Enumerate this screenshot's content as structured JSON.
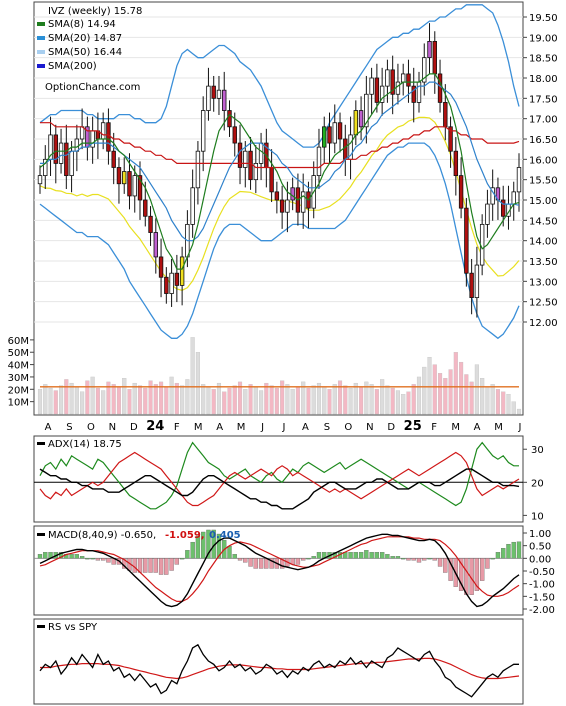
{
  "chart_data": [
    {
      "type": "candlestick",
      "panel": "price",
      "title": "IVZ (weekly) 15.78",
      "watermark": "OptionChance.com",
      "ylim": [
        11.5,
        19.9
      ],
      "y_ticks": [
        "19.50",
        "19.00",
        "18.50",
        "18.00",
        "17.50",
        "17.00",
        "16.50",
        "16.00",
        "15.50",
        "15.00",
        "14.50",
        "14.00",
        "13.50",
        "13.00",
        "12.50",
        "12.00"
      ],
      "x_labels": [
        "A",
        "S",
        "O",
        "N",
        "D",
        "24",
        "F",
        "M",
        "A",
        "M",
        "J",
        "J",
        "A",
        "S",
        "O",
        "N",
        "D",
        "25",
        "F",
        "M",
        "A",
        "M",
        "J"
      ],
      "legend": [
        {
          "label": "SMA(8) 14.94",
          "color": "#1e7d1e"
        },
        {
          "label": "SMA(20) 14.87",
          "color": "#2a8fd6"
        },
        {
          "label": "SMA(50) 16.44",
          "color": "#a8cff0"
        },
        {
          "label": "SMA(200)",
          "color": "#1a1ad0"
        }
      ],
      "close_path": [
        15.6,
        16.0,
        16.6,
        15.9,
        16.4,
        15.6,
        16.2,
        16.5,
        16.8,
        16.3,
        16.7,
        16.5,
        16.9,
        16.2,
        15.8,
        15.4,
        15.7,
        15.1,
        15.6,
        15.0,
        14.6,
        14.2,
        13.6,
        13.1,
        12.7,
        13.2,
        12.9,
        13.6,
        14.4,
        15.3,
        16.2,
        17.2,
        17.8,
        17.5,
        17.7,
        17.2,
        16.8,
        16.4,
        15.8,
        16.2,
        15.5,
        15.9,
        16.4,
        15.8,
        15.2,
        15.0,
        14.7,
        15.0,
        15.3,
        14.7,
        15.2,
        14.8,
        15.6,
        16.3,
        16.8,
        16.4,
        16.9,
        16.5,
        16.0,
        16.6,
        17.2,
        16.8,
        17.6,
        18.0,
        17.4,
        17.8,
        18.2,
        17.6,
        17.9,
        18.1,
        17.8,
        17.4,
        17.9,
        18.5,
        18.9,
        18.1,
        17.4,
        16.8,
        16.2,
        15.6,
        14.8,
        13.2,
        12.6,
        13.4,
        14.4,
        14.9,
        15.3,
        15.0,
        14.6,
        14.9,
        15.2,
        15.8
      ],
      "sma8": [
        15.8,
        15.9,
        16.1,
        16.2,
        16.2,
        16.2,
        16.3,
        16.3,
        16.4,
        16.4,
        16.4,
        16.5,
        16.5,
        16.5,
        16.4,
        16.2,
        16.1,
        15.9,
        15.7,
        15.5,
        15.3,
        15.0,
        14.6,
        14.2,
        13.8,
        13.6,
        13.3,
        13.3,
        13.6,
        13.9,
        14.4,
        15.0,
        15.6,
        16.2,
        16.7,
        16.9,
        17.1,
        17.0,
        16.9,
        16.7,
        16.5,
        16.3,
        16.2,
        16.1,
        15.9,
        15.7,
        15.4,
        15.2,
        15.1,
        15.0,
        15.1,
        15.0,
        15.2,
        15.4,
        15.7,
        15.9,
        16.1,
        16.2,
        16.3,
        16.4,
        16.6,
        16.7,
        16.9,
        17.1,
        17.3,
        17.5,
        17.6,
        17.7,
        17.8,
        17.9,
        17.9,
        17.9,
        17.9,
        18.0,
        18.1,
        18.1,
        17.9,
        17.6,
        17.3,
        16.8,
        16.2,
        15.4,
        14.7,
        14.1,
        13.8,
        13.9,
        14.1,
        14.3,
        14.5,
        14.7,
        14.9,
        14.94
      ],
      "sma20": [
        15.9,
        15.9,
        16.0,
        16.0,
        16.1,
        16.1,
        16.2,
        16.2,
        16.3,
        16.3,
        16.4,
        16.4,
        16.4,
        16.4,
        16.3,
        16.2,
        16.1,
        16.0,
        15.9,
        15.8,
        15.6,
        15.4,
        15.2,
        15.0,
        14.8,
        14.5,
        14.3,
        14.1,
        14.0,
        14.0,
        14.1,
        14.3,
        14.6,
        14.9,
        15.2,
        15.5,
        15.8,
        16.0,
        16.2,
        16.3,
        16.4,
        16.4,
        16.4,
        16.3,
        16.2,
        16.1,
        15.9,
        15.8,
        15.6,
        15.5,
        15.4,
        15.3,
        15.3,
        15.3,
        15.4,
        15.5,
        15.7,
        15.8,
        16.0,
        16.1,
        16.3,
        16.4,
        16.6,
        16.8,
        16.9,
        17.1,
        17.2,
        17.3,
        17.4,
        17.5,
        17.6,
        17.7,
        17.8,
        17.8,
        17.9,
        17.9,
        17.8,
        17.7,
        17.6,
        17.4,
        17.1,
        16.8,
        16.4,
        16.0,
        15.7,
        15.4,
        15.2,
        15.0,
        14.9,
        14.9,
        14.9,
        14.87
      ],
      "sma50": [
        16.9,
        16.9,
        16.9,
        16.8,
        16.8,
        16.8,
        16.8,
        16.8,
        16.8,
        16.7,
        16.7,
        16.7,
        16.6,
        16.6,
        16.5,
        16.5,
        16.4,
        16.4,
        16.3,
        16.3,
        16.2,
        16.2,
        16.1,
        16.1,
        16.0,
        16.0,
        15.9,
        15.9,
        15.9,
        15.9,
        15.9,
        15.9,
        15.9,
        15.9,
        15.9,
        15.9,
        15.9,
        15.9,
        15.9,
        15.9,
        15.9,
        15.8,
        15.8,
        15.8,
        15.8,
        15.8,
        15.8,
        15.8,
        15.8,
        15.8,
        15.8,
        15.8,
        15.8,
        15.8,
        15.9,
        15.9,
        15.9,
        15.9,
        16.0,
        16.0,
        16.0,
        16.1,
        16.1,
        16.2,
        16.2,
        16.3,
        16.3,
        16.4,
        16.4,
        16.5,
        16.5,
        16.6,
        16.6,
        16.7,
        16.7,
        16.8,
        16.8,
        16.8,
        16.7,
        16.7,
        16.6,
        16.6,
        16.5,
        16.5,
        16.5,
        16.4,
        16.4,
        16.4,
        16.4,
        16.4,
        16.4,
        16.44
      ],
      "bb_upper": [
        16.9,
        17.0,
        17.1,
        17.1,
        17.2,
        17.2,
        17.2,
        17.2,
        17.2,
        17.1,
        17.1,
        17.0,
        17.0,
        17.0,
        17.0,
        17.1,
        17.1,
        17.1,
        17.0,
        17.0,
        16.9,
        16.9,
        16.9,
        17.0,
        17.3,
        17.8,
        18.3,
        18.6,
        18.7,
        18.6,
        18.5,
        18.5,
        18.6,
        18.7,
        18.8,
        18.8,
        18.7,
        18.6,
        18.4,
        18.3,
        18.2,
        18.0,
        17.8,
        17.5,
        17.2,
        16.9,
        16.7,
        16.6,
        16.5,
        16.4,
        16.3,
        16.3,
        16.3,
        16.4,
        16.6,
        16.9,
        17.1,
        17.3,
        17.5,
        17.7,
        17.9,
        18.1,
        18.3,
        18.5,
        18.7,
        18.8,
        18.9,
        19.0,
        19.0,
        19.1,
        19.1,
        19.2,
        19.2,
        19.3,
        19.4,
        19.4,
        19.5,
        19.5,
        19.6,
        19.7,
        19.7,
        19.8,
        19.8,
        19.8,
        19.8,
        19.7,
        19.6,
        19.3,
        18.9,
        18.4,
        17.8,
        17.3
      ],
      "bb_lower": [
        14.9,
        14.8,
        14.7,
        14.6,
        14.5,
        14.4,
        14.3,
        14.2,
        14.2,
        14.1,
        14.1,
        14.1,
        14.0,
        13.9,
        13.7,
        13.5,
        13.3,
        13.0,
        12.8,
        12.6,
        12.4,
        12.2,
        12.0,
        11.8,
        11.7,
        11.6,
        11.6,
        11.7,
        11.9,
        12.2,
        12.6,
        13.0,
        13.4,
        13.8,
        14.1,
        14.3,
        14.4,
        14.4,
        14.4,
        14.3,
        14.2,
        14.1,
        14.0,
        14.0,
        14.0,
        14.1,
        14.2,
        14.3,
        14.4,
        14.4,
        14.4,
        14.3,
        14.3,
        14.3,
        14.3,
        14.3,
        14.3,
        14.4,
        14.5,
        14.7,
        14.9,
        15.1,
        15.3,
        15.5,
        15.7,
        15.9,
        16.1,
        16.2,
        16.3,
        16.3,
        16.4,
        16.4,
        16.4,
        16.4,
        16.3,
        16.1,
        15.8,
        15.4,
        14.9,
        14.3,
        13.7,
        13.1,
        12.6,
        12.2,
        11.9,
        11.8,
        11.7,
        11.6,
        11.7,
        11.9,
        12.1,
        12.4
      ]
    },
    {
      "type": "volume",
      "panel": "volume",
      "y_ticks": [
        "60M",
        "50M",
        "40M",
        "30M",
        "20M",
        "10M"
      ],
      "ylim": [
        0,
        68
      ],
      "avg_volume": 22,
      "bars": [
        20,
        24,
        21,
        19,
        23,
        28,
        25,
        22,
        18,
        27,
        30,
        21,
        19,
        26,
        24,
        22,
        29,
        20,
        25,
        23,
        21,
        27,
        24,
        26,
        22,
        30,
        25,
        23,
        28,
        62,
        50,
        24,
        22,
        20,
        25,
        18,
        21,
        23,
        26,
        20,
        24,
        22,
        19,
        25,
        23,
        21,
        27,
        24,
        20,
        22,
        26,
        21,
        23,
        25,
        22,
        20,
        24,
        27,
        23,
        21,
        25,
        22,
        26,
        24,
        20,
        28,
        23,
        21,
        19,
        16,
        18,
        24,
        30,
        38,
        46,
        40,
        33,
        29,
        36,
        50,
        42,
        32,
        26,
        40,
        29,
        22,
        24,
        20,
        18,
        16,
        10,
        4
      ]
    },
    {
      "type": "line",
      "panel": "adx",
      "label": "ADX(14) 18.75",
      "y_ticks": [
        "30",
        "20",
        "10"
      ],
      "ylim": [
        8,
        34
      ],
      "reference_line": 20,
      "adx": [
        24,
        23,
        22,
        22,
        21,
        21,
        20,
        20,
        19,
        19,
        18,
        18,
        18,
        17,
        17,
        17,
        18,
        19,
        20,
        21,
        22,
        22,
        21,
        20,
        19,
        18,
        17,
        16,
        16,
        17,
        19,
        21,
        22,
        22,
        21,
        20,
        19,
        18,
        17,
        16,
        15,
        15,
        14,
        14,
        13,
        13,
        12,
        12,
        12,
        13,
        14,
        15,
        17,
        18,
        19,
        20,
        20,
        19,
        18,
        18,
        18,
        19,
        20,
        20,
        21,
        21,
        20,
        19,
        18,
        18,
        18,
        19,
        20,
        20,
        20,
        19,
        19,
        20,
        21,
        22,
        23,
        24,
        24,
        23,
        22,
        21,
        20,
        20,
        19,
        19,
        19,
        18.75
      ],
      "plus_di": [
        22,
        25,
        26,
        24,
        27,
        25,
        28,
        27,
        26,
        25,
        24,
        27,
        26,
        24,
        22,
        20,
        18,
        16,
        15,
        14,
        13,
        12,
        12,
        13,
        14,
        16,
        19,
        24,
        29,
        32,
        30,
        28,
        26,
        25,
        24,
        22,
        21,
        22,
        23,
        24,
        22,
        21,
        20,
        22,
        23,
        21,
        20,
        22,
        24,
        23,
        25,
        26,
        25,
        24,
        23,
        24,
        25,
        26,
        24,
        25,
        26,
        27,
        26,
        25,
        24,
        23,
        22,
        21,
        20,
        19,
        18,
        19,
        20,
        19,
        18,
        17,
        16,
        15,
        14,
        13,
        14,
        18,
        24,
        30,
        32,
        30,
        28,
        27,
        28,
        26,
        25,
        25
      ],
      "minus_di": [
        18,
        16,
        15,
        17,
        16,
        18,
        16,
        17,
        18,
        19,
        20,
        19,
        20,
        22,
        24,
        26,
        27,
        28,
        29,
        28,
        27,
        26,
        25,
        24,
        22,
        20,
        18,
        16,
        14,
        13,
        13,
        14,
        15,
        16,
        18,
        20,
        22,
        23,
        22,
        21,
        22,
        23,
        24,
        23,
        22,
        24,
        25,
        24,
        22,
        23,
        22,
        21,
        20,
        19,
        18,
        17,
        18,
        17,
        18,
        17,
        16,
        15,
        16,
        17,
        18,
        19,
        20,
        21,
        22,
        23,
        24,
        23,
        22,
        23,
        24,
        25,
        26,
        27,
        28,
        29,
        28,
        26,
        22,
        18,
        16,
        17,
        18,
        19,
        18,
        19,
        20,
        21
      ]
    },
    {
      "type": "macd",
      "panel": "macd",
      "label": "MACD(8,40,9) -0.650,",
      "value_macd": "-1.059,",
      "value_signal": "0.405",
      "y_ticks": [
        "1.00",
        "0.50",
        "0.00",
        "-0.50",
        "-1.00",
        "-1.50",
        "-2.00"
      ],
      "ylim": [
        -2.3,
        1.3
      ],
      "macd": [
        -0.2,
        -0.1,
        0.0,
        0.1,
        0.2,
        0.25,
        0.3,
        0.35,
        0.35,
        0.3,
        0.3,
        0.25,
        0.2,
        0.1,
        0.0,
        -0.1,
        -0.3,
        -0.5,
        -0.7,
        -0.9,
        -1.1,
        -1.3,
        -1.5,
        -1.7,
        -1.85,
        -1.9,
        -1.85,
        -1.7,
        -1.4,
        -1.0,
        -0.6,
        -0.2,
        0.2,
        0.5,
        0.7,
        0.8,
        0.8,
        0.7,
        0.6,
        0.5,
        0.35,
        0.2,
        0.1,
        0.0,
        -0.1,
        -0.2,
        -0.3,
        -0.35,
        -0.4,
        -0.45,
        -0.4,
        -0.35,
        -0.25,
        -0.1,
        0.0,
        0.1,
        0.2,
        0.3,
        0.4,
        0.5,
        0.6,
        0.7,
        0.8,
        0.85,
        0.9,
        0.95,
        0.95,
        0.9,
        0.9,
        0.85,
        0.8,
        0.75,
        0.7,
        0.7,
        0.75,
        0.7,
        0.5,
        0.2,
        -0.2,
        -0.6,
        -1.0,
        -1.4,
        -1.7,
        -1.9,
        -1.85,
        -1.7,
        -1.5,
        -1.35,
        -1.2,
        -1.0,
        -0.8,
        -0.65
      ],
      "signal": [
        -0.3,
        -0.25,
        -0.15,
        -0.05,
        0.05,
        0.15,
        0.2,
        0.25,
        0.3,
        0.3,
        0.3,
        0.3,
        0.25,
        0.2,
        0.15,
        0.05,
        -0.05,
        -0.2,
        -0.35,
        -0.55,
        -0.75,
        -0.95,
        -1.15,
        -1.3,
        -1.45,
        -1.6,
        -1.7,
        -1.7,
        -1.6,
        -1.4,
        -1.15,
        -0.85,
        -0.5,
        -0.2,
        0.1,
        0.35,
        0.5,
        0.6,
        0.65,
        0.6,
        0.55,
        0.45,
        0.35,
        0.25,
        0.15,
        0.05,
        -0.05,
        -0.15,
        -0.25,
        -0.3,
        -0.35,
        -0.35,
        -0.3,
        -0.25,
        -0.15,
        -0.05,
        0.05,
        0.15,
        0.25,
        0.35,
        0.45,
        0.55,
        0.6,
        0.7,
        0.75,
        0.8,
        0.85,
        0.85,
        0.85,
        0.85,
        0.85,
        0.8,
        0.8,
        0.75,
        0.75,
        0.75,
        0.7,
        0.55,
        0.35,
        0.1,
        -0.2,
        -0.5,
        -0.8,
        -1.1,
        -1.3,
        -1.45,
        -1.5,
        -1.5,
        -1.45,
        -1.35,
        -1.2,
        -1.06
      ]
    },
    {
      "type": "line",
      "panel": "rs",
      "label": "RS vs SPY",
      "rs": [
        0.45,
        0.55,
        0.5,
        0.6,
        0.4,
        0.5,
        0.65,
        0.55,
        0.7,
        0.6,
        0.5,
        0.7,
        0.55,
        0.6,
        0.45,
        0.5,
        0.35,
        0.4,
        0.3,
        0.4,
        0.3,
        0.2,
        0.25,
        0.1,
        0.15,
        0.3,
        0.25,
        0.45,
        0.6,
        0.8,
        0.85,
        0.7,
        0.6,
        0.55,
        0.45,
        0.5,
        0.6,
        0.5,
        0.55,
        0.45,
        0.5,
        0.4,
        0.45,
        0.55,
        0.5,
        0.4,
        0.45,
        0.35,
        0.45,
        0.4,
        0.5,
        0.45,
        0.55,
        0.6,
        0.5,
        0.55,
        0.5,
        0.6,
        0.55,
        0.65,
        0.55,
        0.6,
        0.5,
        0.6,
        0.55,
        0.5,
        0.65,
        0.7,
        0.8,
        0.75,
        0.7,
        0.65,
        0.6,
        0.7,
        0.75,
        0.6,
        0.5,
        0.35,
        0.3,
        0.2,
        0.15,
        0.1,
        0.05,
        0.15,
        0.25,
        0.35,
        0.4,
        0.35,
        0.45,
        0.5,
        0.55,
        0.55
      ],
      "avg": [
        0.5,
        0.5,
        0.5,
        0.52,
        0.53,
        0.54,
        0.55,
        0.55,
        0.56,
        0.56,
        0.56,
        0.56,
        0.55,
        0.55,
        0.54,
        0.53,
        0.51,
        0.49,
        0.47,
        0.45,
        0.43,
        0.41,
        0.39,
        0.37,
        0.35,
        0.34,
        0.33,
        0.34,
        0.36,
        0.39,
        0.42,
        0.45,
        0.48,
        0.5,
        0.52,
        0.53,
        0.54,
        0.54,
        0.54,
        0.53,
        0.52,
        0.51,
        0.5,
        0.5,
        0.49,
        0.48,
        0.48,
        0.47,
        0.47,
        0.47,
        0.47,
        0.47,
        0.48,
        0.49,
        0.5,
        0.51,
        0.52,
        0.53,
        0.54,
        0.55,
        0.56,
        0.56,
        0.57,
        0.57,
        0.58,
        0.58,
        0.59,
        0.6,
        0.61,
        0.62,
        0.63,
        0.63,
        0.63,
        0.64,
        0.64,
        0.63,
        0.61,
        0.58,
        0.55,
        0.51,
        0.47,
        0.43,
        0.39,
        0.36,
        0.34,
        0.33,
        0.33,
        0.33,
        0.34,
        0.35,
        0.36,
        0.37
      ]
    }
  ]
}
